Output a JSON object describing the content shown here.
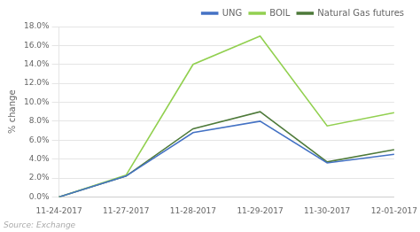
{
  "chart_data": {
    "type": "line",
    "categories": [
      "11-24-2017",
      "11-27-2017",
      "11-28-2017",
      "11-29-2017",
      "11-30-2017",
      "12-01-2017"
    ],
    "series": [
      {
        "name": "UNG",
        "color": "#4472c4",
        "values": [
          0.0,
          2.2,
          6.8,
          8.0,
          3.6,
          4.5
        ]
      },
      {
        "name": "BOIL",
        "color": "#92d050",
        "values": [
          0.0,
          2.3,
          14.0,
          17.0,
          7.5,
          8.9
        ]
      },
      {
        "name": "Natural Gas futures",
        "color": "#4e7a3a",
        "values": [
          0.0,
          2.2,
          7.2,
          9.0,
          3.7,
          5.0
        ]
      }
    ],
    "ylabel": "% change",
    "ylim": [
      0.0,
      18.0
    ],
    "yticks": [
      {
        "value": 0,
        "label": "0.0%"
      },
      {
        "value": 2,
        "label": "2.0%"
      },
      {
        "value": 4,
        "label": "4.0%"
      },
      {
        "value": 6,
        "label": "6.0%"
      },
      {
        "value": 8,
        "label": "8.0%"
      },
      {
        "value": 10,
        "label": "10.0%"
      },
      {
        "value": 12,
        "label": "12.0%"
      },
      {
        "value": 14,
        "label": "14.0%"
      },
      {
        "value": 16,
        "label": "16.0%"
      },
      {
        "value": 18,
        "label": "18.0%"
      }
    ],
    "grid": true,
    "legend": "upper right",
    "annotations": [
      "Source: Exchange"
    ]
  }
}
